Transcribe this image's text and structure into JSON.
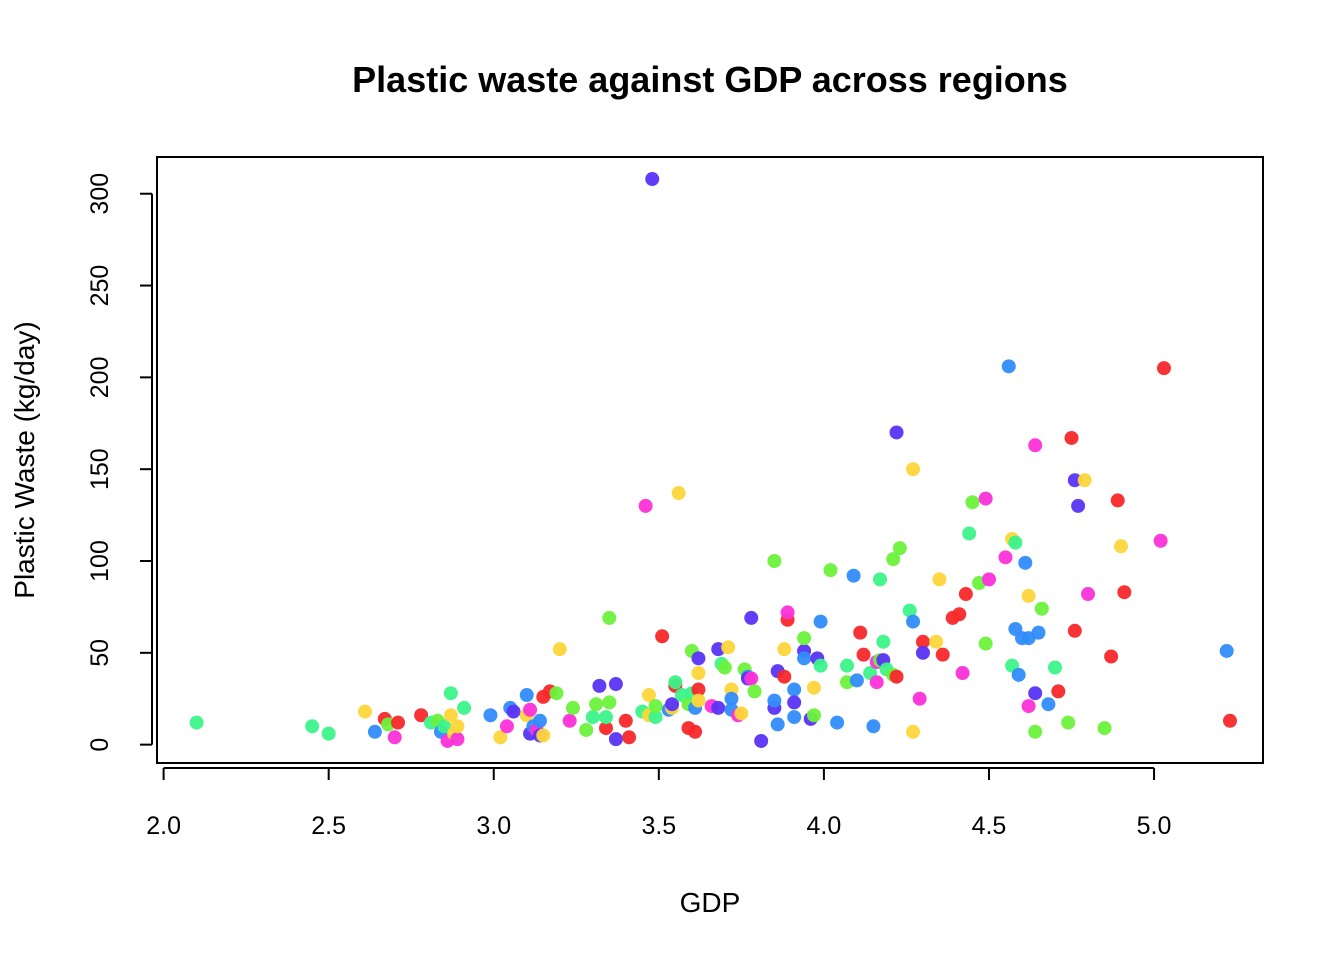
{
  "chart_data": {
    "type": "scatter",
    "title": "Plastic waste against GDP across regions",
    "xlabel": "GDP",
    "ylabel": "Plastic Waste (kg/day)",
    "xlim": [
      1.98,
      5.33
    ],
    "ylim": [
      -10,
      320
    ],
    "xticks": [
      "2.0",
      "2.5",
      "3.0",
      "3.5",
      "4.0",
      "4.5",
      "5.0"
    ],
    "xtick_values": [
      2.0,
      2.5,
      3.0,
      3.5,
      4.0,
      4.5,
      5.0
    ],
    "yticks": [
      "0",
      "50",
      "100",
      "150",
      "200",
      "250",
      "300"
    ],
    "ytick_values": [
      0,
      50,
      100,
      150,
      200,
      250,
      300
    ],
    "grid": false,
    "legend": "none",
    "colors": {
      "red": "#f8282b",
      "yellow": "#fdd63a",
      "green": "#6cf23b",
      "mint": "#3cf38a",
      "blue": "#318cfb",
      "purple": "#5a33f5",
      "pink": "#fb31d9"
    },
    "points": [
      {
        "x": 2.1,
        "y": 12,
        "c": "mint"
      },
      {
        "x": 2.45,
        "y": 10,
        "c": "mint"
      },
      {
        "x": 2.5,
        "y": 6,
        "c": "mint"
      },
      {
        "x": 2.61,
        "y": 18,
        "c": "yellow"
      },
      {
        "x": 2.64,
        "y": 7,
        "c": "blue"
      },
      {
        "x": 2.67,
        "y": 14,
        "c": "red"
      },
      {
        "x": 2.68,
        "y": 11,
        "c": "green"
      },
      {
        "x": 2.7,
        "y": 4,
        "c": "pink"
      },
      {
        "x": 2.71,
        "y": 12,
        "c": "red"
      },
      {
        "x": 2.78,
        "y": 16,
        "c": "red"
      },
      {
        "x": 2.81,
        "y": 12,
        "c": "mint"
      },
      {
        "x": 2.83,
        "y": 13,
        "c": "green"
      },
      {
        "x": 2.84,
        "y": 7,
        "c": "blue"
      },
      {
        "x": 2.85,
        "y": 10,
        "c": "mint"
      },
      {
        "x": 2.86,
        "y": 2,
        "c": "pink"
      },
      {
        "x": 2.87,
        "y": 16,
        "c": "yellow"
      },
      {
        "x": 2.87,
        "y": 28,
        "c": "mint"
      },
      {
        "x": 2.88,
        "y": 6,
        "c": "yellow"
      },
      {
        "x": 2.89,
        "y": 3,
        "c": "pink"
      },
      {
        "x": 2.89,
        "y": 10,
        "c": "yellow"
      },
      {
        "x": 2.91,
        "y": 20,
        "c": "mint"
      },
      {
        "x": 2.99,
        "y": 16,
        "c": "blue"
      },
      {
        "x": 3.02,
        "y": 4,
        "c": "yellow"
      },
      {
        "x": 3.04,
        "y": 10,
        "c": "pink"
      },
      {
        "x": 3.05,
        "y": 20,
        "c": "blue"
      },
      {
        "x": 3.06,
        "y": 18,
        "c": "purple"
      },
      {
        "x": 3.1,
        "y": 27,
        "c": "blue"
      },
      {
        "x": 3.1,
        "y": 16,
        "c": "yellow"
      },
      {
        "x": 3.11,
        "y": 19,
        "c": "pink"
      },
      {
        "x": 3.11,
        "y": 6,
        "c": "purple"
      },
      {
        "x": 3.12,
        "y": 10,
        "c": "blue"
      },
      {
        "x": 3.13,
        "y": 8,
        "c": "pink"
      },
      {
        "x": 3.14,
        "y": 13,
        "c": "blue"
      },
      {
        "x": 3.14,
        "y": 5,
        "c": "purple"
      },
      {
        "x": 3.15,
        "y": 5,
        "c": "yellow"
      },
      {
        "x": 3.15,
        "y": 26,
        "c": "red"
      },
      {
        "x": 3.17,
        "y": 29,
        "c": "red"
      },
      {
        "x": 3.19,
        "y": 28,
        "c": "green"
      },
      {
        "x": 3.2,
        "y": 52,
        "c": "yellow"
      },
      {
        "x": 3.23,
        "y": 13,
        "c": "pink"
      },
      {
        "x": 3.24,
        "y": 20,
        "c": "green"
      },
      {
        "x": 3.28,
        "y": 8,
        "c": "green"
      },
      {
        "x": 3.3,
        "y": 15,
        "c": "mint"
      },
      {
        "x": 3.31,
        "y": 22,
        "c": "green"
      },
      {
        "x": 3.32,
        "y": 32,
        "c": "purple"
      },
      {
        "x": 3.34,
        "y": 9,
        "c": "red"
      },
      {
        "x": 3.34,
        "y": 15,
        "c": "mint"
      },
      {
        "x": 3.35,
        "y": 23,
        "c": "green"
      },
      {
        "x": 3.35,
        "y": 69,
        "c": "green"
      },
      {
        "x": 3.37,
        "y": 33,
        "c": "purple"
      },
      {
        "x": 3.37,
        "y": 3,
        "c": "purple"
      },
      {
        "x": 3.4,
        "y": 13,
        "c": "red"
      },
      {
        "x": 3.41,
        "y": 4,
        "c": "red"
      },
      {
        "x": 3.45,
        "y": 18,
        "c": "mint"
      },
      {
        "x": 3.46,
        "y": 130,
        "c": "pink"
      },
      {
        "x": 3.47,
        "y": 16,
        "c": "yellow"
      },
      {
        "x": 3.47,
        "y": 27,
        "c": "yellow"
      },
      {
        "x": 3.48,
        "y": 308,
        "c": "purple"
      },
      {
        "x": 3.49,
        "y": 15,
        "c": "mint"
      },
      {
        "x": 3.49,
        "y": 21,
        "c": "green"
      },
      {
        "x": 3.51,
        "y": 59,
        "c": "red"
      },
      {
        "x": 3.53,
        "y": 19,
        "c": "blue"
      },
      {
        "x": 3.54,
        "y": 20,
        "c": "yellow"
      },
      {
        "x": 3.54,
        "y": 22,
        "c": "purple"
      },
      {
        "x": 3.55,
        "y": 32,
        "c": "red"
      },
      {
        "x": 3.55,
        "y": 34,
        "c": "mint"
      },
      {
        "x": 3.56,
        "y": 137,
        "c": "yellow"
      },
      {
        "x": 3.57,
        "y": 27,
        "c": "mint"
      },
      {
        "x": 3.59,
        "y": 22,
        "c": "green"
      },
      {
        "x": 3.59,
        "y": 9,
        "c": "red"
      },
      {
        "x": 3.6,
        "y": 51,
        "c": "green"
      },
      {
        "x": 3.6,
        "y": 28,
        "c": "mint"
      },
      {
        "x": 3.61,
        "y": 7,
        "c": "red"
      },
      {
        "x": 3.61,
        "y": 20,
        "c": "blue"
      },
      {
        "x": 3.62,
        "y": 30,
        "c": "red"
      },
      {
        "x": 3.62,
        "y": 39,
        "c": "yellow"
      },
      {
        "x": 3.62,
        "y": 47,
        "c": "purple"
      },
      {
        "x": 3.62,
        "y": 24,
        "c": "yellow"
      },
      {
        "x": 3.66,
        "y": 21,
        "c": "pink"
      },
      {
        "x": 3.68,
        "y": 20,
        "c": "purple"
      },
      {
        "x": 3.68,
        "y": 52,
        "c": "purple"
      },
      {
        "x": 3.69,
        "y": 44,
        "c": "mint"
      },
      {
        "x": 3.7,
        "y": 42,
        "c": "green"
      },
      {
        "x": 3.71,
        "y": 53,
        "c": "yellow"
      },
      {
        "x": 3.72,
        "y": 30,
        "c": "yellow"
      },
      {
        "x": 3.72,
        "y": 25,
        "c": "blue"
      },
      {
        "x": 3.72,
        "y": 19,
        "c": "blue"
      },
      {
        "x": 3.74,
        "y": 16,
        "c": "pink"
      },
      {
        "x": 3.75,
        "y": 17,
        "c": "yellow"
      },
      {
        "x": 3.76,
        "y": 41,
        "c": "green"
      },
      {
        "x": 3.77,
        "y": 37,
        "c": "blue"
      },
      {
        "x": 3.77,
        "y": 36,
        "c": "purple"
      },
      {
        "x": 3.78,
        "y": 69,
        "c": "purple"
      },
      {
        "x": 3.78,
        "y": 36,
        "c": "pink"
      },
      {
        "x": 3.79,
        "y": 29,
        "c": "green"
      },
      {
        "x": 3.81,
        "y": 2,
        "c": "purple"
      },
      {
        "x": 3.85,
        "y": 20,
        "c": "purple"
      },
      {
        "x": 3.85,
        "y": 24,
        "c": "blue"
      },
      {
        "x": 3.85,
        "y": 100,
        "c": "green"
      },
      {
        "x": 3.86,
        "y": 40,
        "c": "purple"
      },
      {
        "x": 3.86,
        "y": 11,
        "c": "blue"
      },
      {
        "x": 3.88,
        "y": 52,
        "c": "yellow"
      },
      {
        "x": 3.88,
        "y": 37,
        "c": "red"
      },
      {
        "x": 3.89,
        "y": 68,
        "c": "red"
      },
      {
        "x": 3.89,
        "y": 72,
        "c": "pink"
      },
      {
        "x": 3.91,
        "y": 30,
        "c": "blue"
      },
      {
        "x": 3.91,
        "y": 15,
        "c": "blue"
      },
      {
        "x": 3.91,
        "y": 23,
        "c": "purple"
      },
      {
        "x": 3.94,
        "y": 51,
        "c": "purple"
      },
      {
        "x": 3.94,
        "y": 47,
        "c": "blue"
      },
      {
        "x": 3.94,
        "y": 58,
        "c": "green"
      },
      {
        "x": 3.96,
        "y": 14,
        "c": "purple"
      },
      {
        "x": 3.97,
        "y": 16,
        "c": "green"
      },
      {
        "x": 3.97,
        "y": 31,
        "c": "yellow"
      },
      {
        "x": 3.98,
        "y": 47,
        "c": "purple"
      },
      {
        "x": 3.99,
        "y": 43,
        "c": "mint"
      },
      {
        "x": 3.99,
        "y": 67,
        "c": "blue"
      },
      {
        "x": 4.02,
        "y": 95,
        "c": "green"
      },
      {
        "x": 4.04,
        "y": 12,
        "c": "blue"
      },
      {
        "x": 4.07,
        "y": 43,
        "c": "mint"
      },
      {
        "x": 4.07,
        "y": 34,
        "c": "green"
      },
      {
        "x": 4.09,
        "y": 92,
        "c": "blue"
      },
      {
        "x": 4.1,
        "y": 35,
        "c": "blue"
      },
      {
        "x": 4.11,
        "y": 61,
        "c": "red"
      },
      {
        "x": 4.12,
        "y": 49,
        "c": "red"
      },
      {
        "x": 4.14,
        "y": 39,
        "c": "mint"
      },
      {
        "x": 4.15,
        "y": 10,
        "c": "blue"
      },
      {
        "x": 4.16,
        "y": 34,
        "c": "pink"
      },
      {
        "x": 4.16,
        "y": 45,
        "c": "pink"
      },
      {
        "x": 4.17,
        "y": 90,
        "c": "mint"
      },
      {
        "x": 4.17,
        "y": 46,
        "c": "green"
      },
      {
        "x": 4.18,
        "y": 56,
        "c": "mint"
      },
      {
        "x": 4.18,
        "y": 46,
        "c": "purple"
      },
      {
        "x": 4.19,
        "y": 41,
        "c": "mint"
      },
      {
        "x": 4.21,
        "y": 38,
        "c": "green"
      },
      {
        "x": 4.21,
        "y": 101,
        "c": "green"
      },
      {
        "x": 4.22,
        "y": 37,
        "c": "red"
      },
      {
        "x": 4.22,
        "y": 170,
        "c": "purple"
      },
      {
        "x": 4.23,
        "y": 107,
        "c": "green"
      },
      {
        "x": 4.26,
        "y": 73,
        "c": "mint"
      },
      {
        "x": 4.27,
        "y": 67,
        "c": "blue"
      },
      {
        "x": 4.27,
        "y": 7,
        "c": "yellow"
      },
      {
        "x": 4.27,
        "y": 150,
        "c": "yellow"
      },
      {
        "x": 4.29,
        "y": 25,
        "c": "pink"
      },
      {
        "x": 4.3,
        "y": 56,
        "c": "red"
      },
      {
        "x": 4.3,
        "y": 50,
        "c": "purple"
      },
      {
        "x": 4.34,
        "y": 56,
        "c": "yellow"
      },
      {
        "x": 4.35,
        "y": 90,
        "c": "yellow"
      },
      {
        "x": 4.36,
        "y": 49,
        "c": "red"
      },
      {
        "x": 4.39,
        "y": 69,
        "c": "red"
      },
      {
        "x": 4.41,
        "y": 71,
        "c": "red"
      },
      {
        "x": 4.42,
        "y": 39,
        "c": "pink"
      },
      {
        "x": 4.43,
        "y": 82,
        "c": "red"
      },
      {
        "x": 4.44,
        "y": 115,
        "c": "mint"
      },
      {
        "x": 4.45,
        "y": 132,
        "c": "green"
      },
      {
        "x": 4.47,
        "y": 88,
        "c": "green"
      },
      {
        "x": 4.49,
        "y": 55,
        "c": "green"
      },
      {
        "x": 4.49,
        "y": 134,
        "c": "pink"
      },
      {
        "x": 4.5,
        "y": 90,
        "c": "pink"
      },
      {
        "x": 4.55,
        "y": 102,
        "c": "pink"
      },
      {
        "x": 4.56,
        "y": 206,
        "c": "blue"
      },
      {
        "x": 4.57,
        "y": 43,
        "c": "mint"
      },
      {
        "x": 4.57,
        "y": 112,
        "c": "yellow"
      },
      {
        "x": 4.58,
        "y": 63,
        "c": "blue"
      },
      {
        "x": 4.58,
        "y": 110,
        "c": "mint"
      },
      {
        "x": 4.59,
        "y": 38,
        "c": "blue"
      },
      {
        "x": 4.6,
        "y": 58,
        "c": "blue"
      },
      {
        "x": 4.61,
        "y": 99,
        "c": "blue"
      },
      {
        "x": 4.62,
        "y": 21,
        "c": "pink"
      },
      {
        "x": 4.62,
        "y": 58,
        "c": "blue"
      },
      {
        "x": 4.62,
        "y": 81,
        "c": "yellow"
      },
      {
        "x": 4.64,
        "y": 28,
        "c": "purple"
      },
      {
        "x": 4.64,
        "y": 163,
        "c": "pink"
      },
      {
        "x": 4.64,
        "y": 7,
        "c": "green"
      },
      {
        "x": 4.65,
        "y": 61,
        "c": "blue"
      },
      {
        "x": 4.66,
        "y": 74,
        "c": "green"
      },
      {
        "x": 4.68,
        "y": 22,
        "c": "blue"
      },
      {
        "x": 4.7,
        "y": 42,
        "c": "mint"
      },
      {
        "x": 4.71,
        "y": 29,
        "c": "red"
      },
      {
        "x": 4.74,
        "y": 12,
        "c": "green"
      },
      {
        "x": 4.75,
        "y": 167,
        "c": "red"
      },
      {
        "x": 4.76,
        "y": 144,
        "c": "purple"
      },
      {
        "x": 4.76,
        "y": 62,
        "c": "red"
      },
      {
        "x": 4.77,
        "y": 130,
        "c": "purple"
      },
      {
        "x": 4.79,
        "y": 144,
        "c": "yellow"
      },
      {
        "x": 4.8,
        "y": 82,
        "c": "pink"
      },
      {
        "x": 4.85,
        "y": 9,
        "c": "green"
      },
      {
        "x": 4.87,
        "y": 48,
        "c": "red"
      },
      {
        "x": 4.89,
        "y": 133,
        "c": "red"
      },
      {
        "x": 4.9,
        "y": 108,
        "c": "yellow"
      },
      {
        "x": 4.91,
        "y": 83,
        "c": "red"
      },
      {
        "x": 5.02,
        "y": 111,
        "c": "pink"
      },
      {
        "x": 5.03,
        "y": 205,
        "c": "red"
      },
      {
        "x": 5.22,
        "y": 51,
        "c": "blue"
      },
      {
        "x": 5.23,
        "y": 13,
        "c": "red"
      }
    ]
  }
}
